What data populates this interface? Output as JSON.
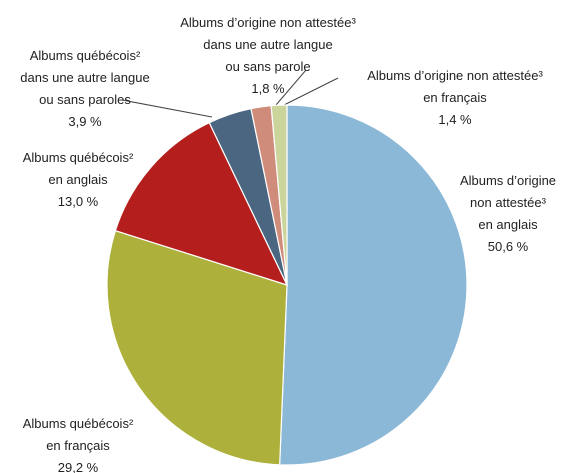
{
  "chart_data": {
    "type": "pie",
    "labels": [
      [
        "Albums d’origine",
        "non attestée³",
        "en anglais"
      ],
      [
        "Albums québécois²",
        "en français"
      ],
      [
        "Albums québécois²",
        "en anglais"
      ],
      [
        "Albums québécois²",
        "dans une autre langue",
        "ou sans paroles"
      ],
      [
        "Albums d’origine non attestée³",
        "dans une autre langue",
        "ou sans parole"
      ],
      [
        "Albums d’origine non attestée³",
        "en français"
      ]
    ],
    "values": [
      50.6,
      29.2,
      13.0,
      3.9,
      1.8,
      1.4
    ],
    "value_labels": [
      "50,6 %",
      "29,2 %",
      "13,0 %",
      "3,9 %",
      "1,8 %",
      "1,4 %"
    ],
    "colors": [
      "#8cb8d7",
      "#adb03a",
      "#b41f1e",
      "#4b6680",
      "#d08c7b",
      "#cbd59b"
    ]
  }
}
